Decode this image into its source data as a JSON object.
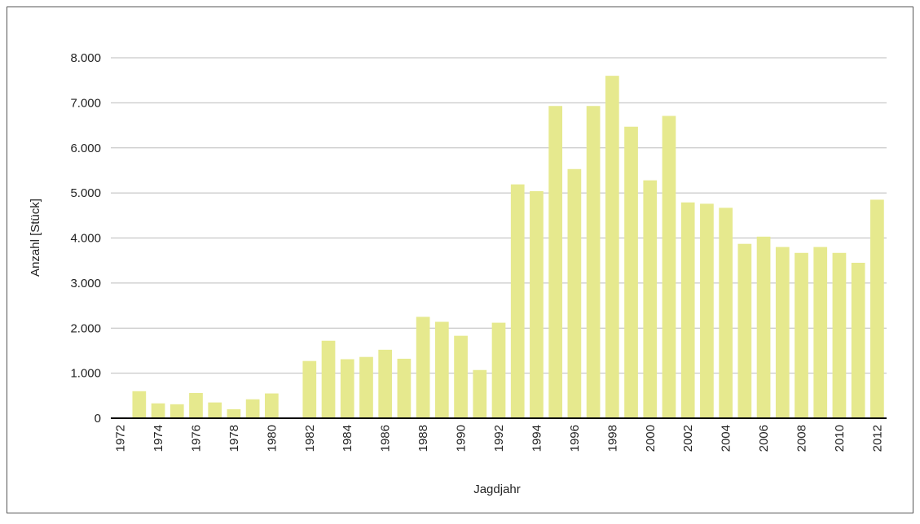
{
  "chart_data": {
    "type": "bar",
    "xlabel": "Jagdjahr",
    "ylabel": "Anzahl [Stück]",
    "categories": [
      "1972",
      null,
      "1974",
      null,
      "1976",
      null,
      "1978",
      null,
      "1980",
      null,
      "1982",
      null,
      "1984",
      null,
      "1986",
      null,
      "1988",
      null,
      "1990",
      null,
      "1992",
      null,
      "1994",
      null,
      "1996",
      null,
      "1998",
      null,
      "2000",
      null,
      "2002",
      null,
      "2004",
      null,
      "2006",
      null,
      "2008",
      null,
      "2010",
      null,
      "2012"
    ],
    "values": [
      20,
      600,
      330,
      310,
      560,
      350,
      200,
      420,
      550,
      0,
      1270,
      1720,
      1310,
      1360,
      1520,
      1320,
      2250,
      2140,
      1830,
      1070,
      2120,
      5190,
      5040,
      6930,
      5530,
      6930,
      7600,
      6470,
      5280,
      6710,
      4790,
      4760,
      4670,
      3870,
      4030,
      3800,
      3670,
      3800,
      3670,
      3450,
      4850
    ],
    "color": "#e6e98e",
    "ylim": [
      0,
      8000
    ],
    "yticks": [
      0,
      {
        "value": 1000,
        "label": "1.000"
      },
      {
        "value": 2000,
        "label": "2.000"
      },
      {
        "value": 3000,
        "label": "3.000"
      },
      {
        "value": 4000,
        "label": "4.000"
      },
      {
        "value": 5000,
        "label": "5.000"
      },
      {
        "value": 6000,
        "label": "6.000"
      },
      {
        "value": 7000,
        "label": "7.000"
      },
      {
        "value": 8000,
        "label": "8.000"
      }
    ],
    "grid": true
  }
}
